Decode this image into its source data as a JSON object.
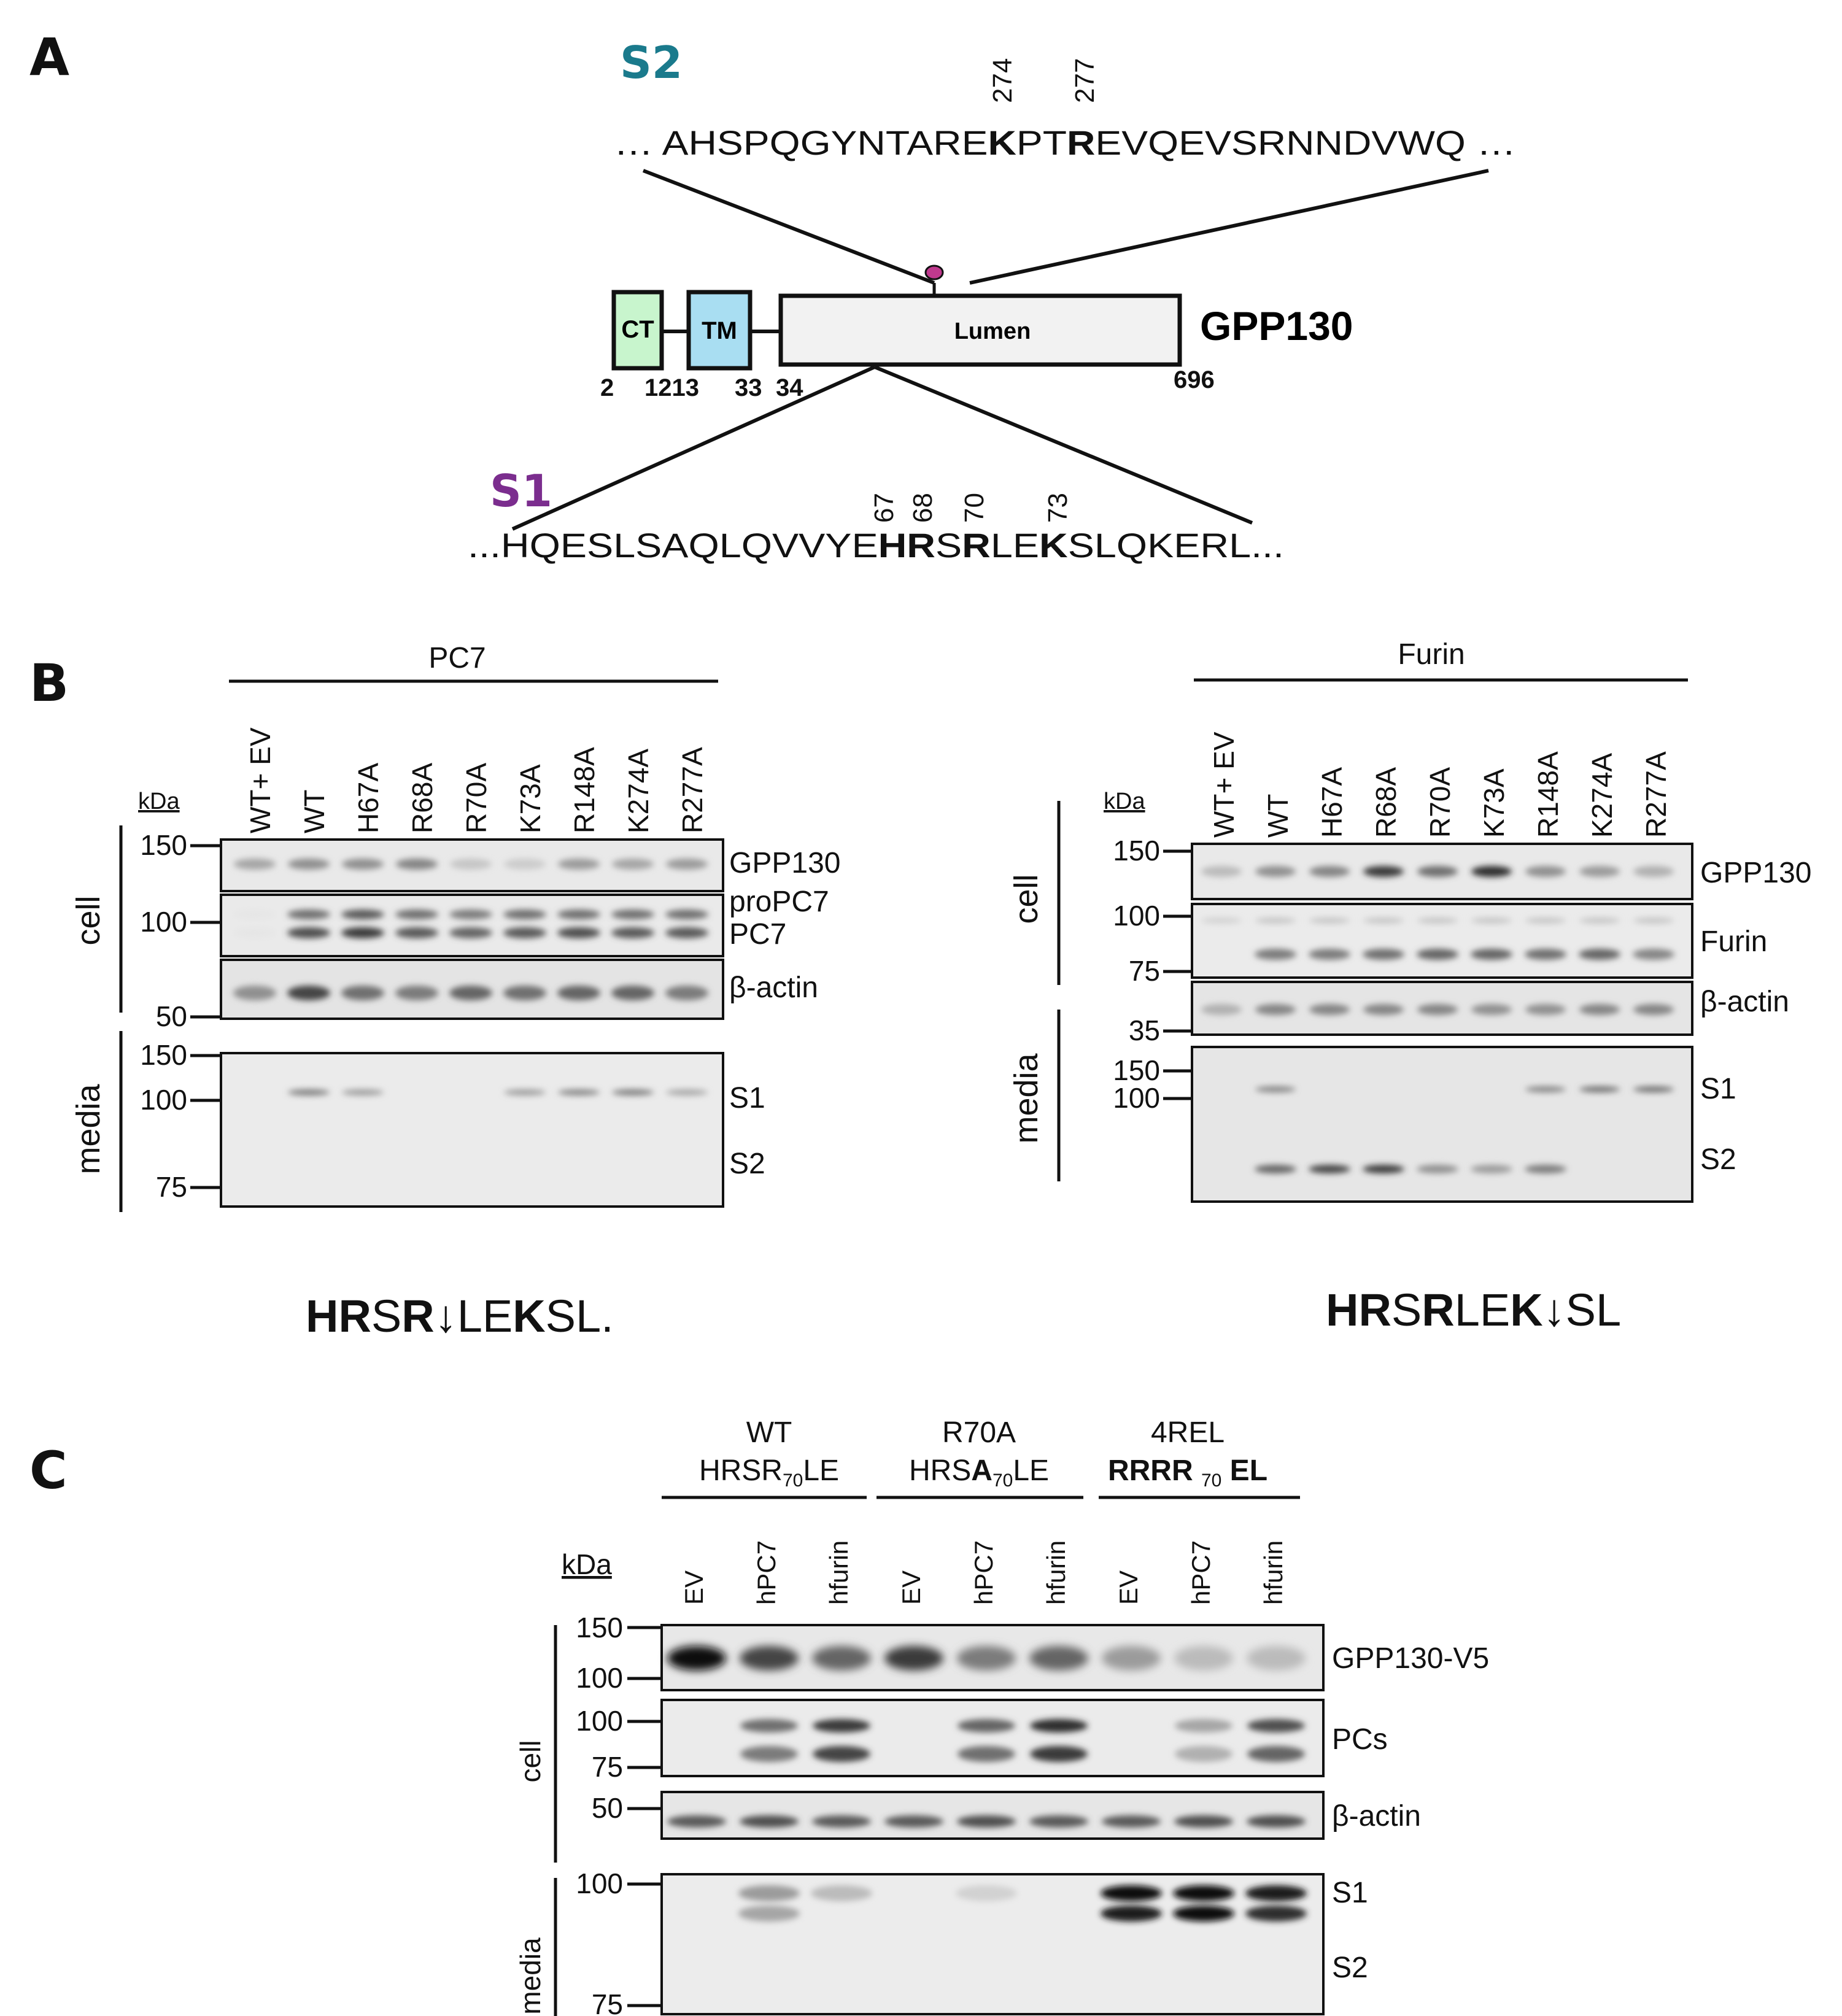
{
  "panelA": {
    "label": "A",
    "s2": {
      "tag": "S2",
      "tag_color": "#1a7a8c",
      "positions": [
        "274",
        "277"
      ],
      "sequence": [
        {
          "text": "… AHSPQGYNTARE",
          "bold": false
        },
        {
          "text": "K",
          "bold": true
        },
        {
          "text": "PT",
          "bold": false
        },
        {
          "text": "R",
          "bold": true
        },
        {
          "text": "EVQEVSRNNDVWQ …",
          "bold": false
        }
      ]
    },
    "domain_map": {
      "protein": "GPP130",
      "boxes": [
        {
          "label": "CT",
          "color": "#c8f5cd"
        },
        {
          "label": "TM",
          "color": "#a9def2"
        },
        {
          "label": "Lumen",
          "color": "#f2f2f2"
        }
      ],
      "boundaries": [
        "2",
        "1213",
        "33",
        "34",
        "696"
      ],
      "site_color": "#c0398e"
    },
    "s1": {
      "tag": "S1",
      "tag_color": "#7b2d8e",
      "positions": [
        "67",
        "68",
        "70",
        "73"
      ],
      "sequence": [
        {
          "text": "...HQESLSAQLQVVYE",
          "bold": false
        },
        {
          "text": "HR",
          "bold": true
        },
        {
          "text": "S",
          "bold": false
        },
        {
          "text": "R",
          "bold": true
        },
        {
          "text": "LE",
          "bold": false
        },
        {
          "text": "K",
          "bold": true
        },
        {
          "text": "SLQKERL...",
          "bold": false
        }
      ]
    }
  },
  "panelB": {
    "label": "B",
    "left": {
      "header": "PC7",
      "kda_label": "kDa",
      "lanes": [
        "WT+ EV",
        "WT",
        "H67A",
        "R68A",
        "R70A",
        "K73A",
        "R148A",
        "K274A",
        "R277A"
      ],
      "section_labels": [
        "cell",
        "media"
      ],
      "markers_cell": [
        "150",
        "100",
        "50"
      ],
      "markers_media": [
        "150",
        "100",
        "75"
      ],
      "band_labels": [
        "GPP130",
        "proPC7",
        "PC7",
        "β-actin",
        "S1",
        "S2"
      ],
      "motif": [
        {
          "text": "HR",
          "bold": true
        },
        {
          "text": "S",
          "bold": false
        },
        {
          "text": "R",
          "bold": true
        },
        {
          "text": "↓",
          "bold": true
        },
        {
          "text": "LE",
          "bold": false
        },
        {
          "text": "K",
          "bold": true
        },
        {
          "text": "SL.",
          "bold": false
        }
      ]
    },
    "right": {
      "header": "Furin",
      "kda_label": "kDa",
      "lanes": [
        "WT+ EV",
        "WT",
        "H67A",
        "R68A",
        "R70A",
        "K73A",
        "R148A",
        "K274A",
        "R277A"
      ],
      "section_labels": [
        "cell",
        "media"
      ],
      "markers_cell": [
        "150",
        "100",
        "75",
        "35"
      ],
      "markers_media": [
        "150",
        "100"
      ],
      "band_labels": [
        "GPP130",
        "Furin",
        "β-actin",
        "S1",
        "S2"
      ],
      "motif": [
        {
          "text": "HR",
          "bold": true
        },
        {
          "text": "S",
          "bold": false
        },
        {
          "text": "R",
          "bold": true
        },
        {
          "text": "LE",
          "bold": false
        },
        {
          "text": "K",
          "bold": true
        },
        {
          "text": "↓",
          "bold": true
        },
        {
          "text": "SL",
          "bold": false
        }
      ]
    }
  },
  "panelC": {
    "label": "C",
    "groups": [
      {
        "line1": "WT",
        "line2": [
          {
            "text": "HRSR",
            "bold": false
          },
          {
            "text": "70",
            "bold": false,
            "sub": true
          },
          {
            "text": "LE",
            "bold": false
          }
        ]
      },
      {
        "line1": "R70A",
        "line2": [
          {
            "text": "HRS",
            "bold": false
          },
          {
            "text": "A",
            "bold": true
          },
          {
            "text": "70",
            "bold": false,
            "sub": true
          },
          {
            "text": "LE",
            "bold": false
          }
        ]
      },
      {
        "line1": "4REL",
        "line2": [
          {
            "text": "RRRR ",
            "bold": true
          },
          {
            "text": "70",
            "bold": false,
            "sub": true
          },
          {
            "text": " EL",
            "bold": true
          }
        ]
      }
    ],
    "kda_label": "kDa",
    "lanes": [
      "EV",
      "hPC7",
      "hfurin",
      "EV",
      "hPC7",
      "hfurin",
      "EV",
      "hPC7",
      "hfurin"
    ],
    "section_labels": [
      "cell",
      "media"
    ],
    "markers_cell": [
      "150",
      "100",
      "100",
      "75",
      "50"
    ],
    "markers_media": [
      "100",
      "75"
    ],
    "band_labels": [
      "GPP130-V5",
      "PCs",
      "β-actin",
      "S1",
      "S2"
    ]
  }
}
